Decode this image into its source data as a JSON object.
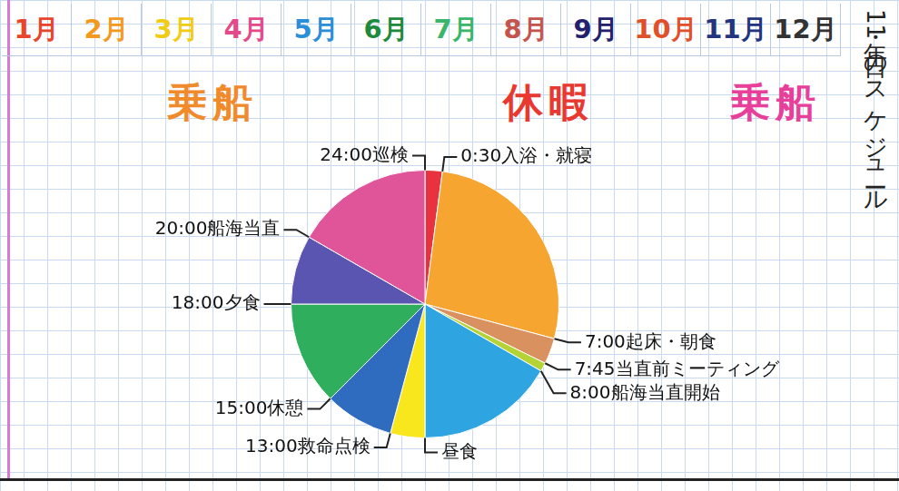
{
  "months": [
    {
      "text": "1月",
      "color": "#e8452c"
    },
    {
      "text": "2月",
      "color": "#f39a1e"
    },
    {
      "text": "3月",
      "color": "#f0cc14"
    },
    {
      "text": "4月",
      "color": "#e44a8a"
    },
    {
      "text": "5月",
      "color": "#2a8fd8"
    },
    {
      "text": "6月",
      "color": "#1f8a3c"
    },
    {
      "text": "7月",
      "color": "#3bb56a"
    },
    {
      "text": "8月",
      "color": "#c4544c"
    },
    {
      "text": "9月",
      "color": "#23206e"
    },
    {
      "text": "10月",
      "color": "#e0502b"
    },
    {
      "text": "11月",
      "color": "#23357e"
    },
    {
      "text": "12月",
      "color": "#333333"
    }
  ],
  "periods": [
    {
      "text": "乗船",
      "color": "#f08a2a"
    },
    {
      "text": "休暇",
      "color": "#e8382f"
    },
    {
      "text": "乗船",
      "color": "#e8409a"
    }
  ],
  "side_text": "1年・1日のスケジュール",
  "chart_data": {
    "type": "pie",
    "categories": [
      "24:00巡検",
      "0:30入浴・就寝",
      "7:00起床・朝食",
      "7:45当直前ミーティング",
      "8:00船海当直開始",
      "昼食",
      "13:00救命点検",
      "15:00休憩",
      "18:00夕食",
      "20:00船海当直"
    ],
    "values": [
      0.5,
      6.5,
      0.75,
      0.25,
      4,
      1,
      2,
      3,
      2,
      4
    ],
    "colors": [
      "#e8323f",
      "#f7a531",
      "#d9925f",
      "#b5d334",
      "#2ea4e0",
      "#f8e71c",
      "#2f6cc0",
      "#2fae5e",
      "#5a55b0",
      "#e0559a"
    ],
    "data_labels": false
  }
}
